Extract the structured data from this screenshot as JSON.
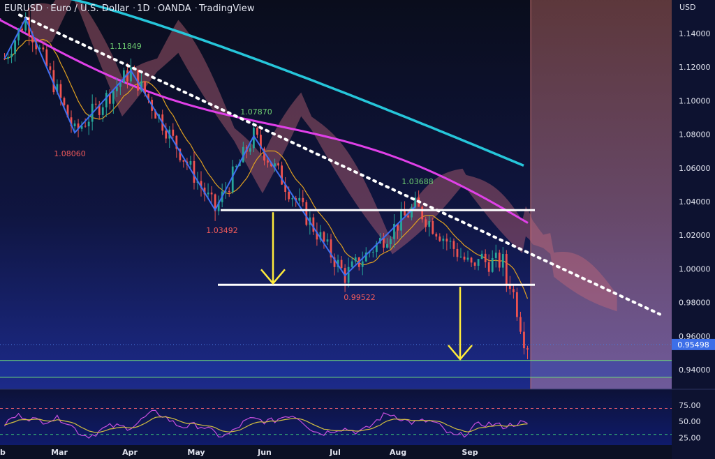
{
  "header": {
    "symbol": "EURUSD",
    "name": "Euro / U.S. Dollar",
    "interval": "1D",
    "broker": "OANDA",
    "platform": "TradingView",
    "separator": "·"
  },
  "chart_data": {
    "type": "candlestick",
    "currency_label": "USD",
    "last_price_label": "0.95498",
    "colors": {
      "background_top": "#0a0e1f",
      "background_bottom": "#1b2680",
      "up_candle": "#26a69a",
      "down_candle": "#ef5350",
      "trend_line": "#ffffff",
      "zigzag": "#3d6ef0",
      "ma_fast": "#e0a020",
      "ma_mid": "#e040e8",
      "ma_slow": "#26c6da",
      "cloud": "#c96a7a",
      "arrows": "#ffeb3b",
      "highlight_zone": "#c06a6a",
      "rsi_line": "#c84fe0",
      "rsi_signal": "#d4c040",
      "support_zone": "#6fe07a"
    },
    "y_axis": {
      "min": 0.93,
      "max": 1.16,
      "ticks": [
        "1.14000",
        "1.12000",
        "1.10000",
        "1.08000",
        "1.06000",
        "1.04000",
        "1.02000",
        "1.00000",
        "0.98000",
        "0.96000",
        "0.94000"
      ]
    },
    "x_axis": {
      "ticks": [
        "Feb",
        "Mar",
        "Apr",
        "May",
        "Jun",
        "Jul",
        "Aug",
        "Sep"
      ]
    },
    "pivot_labels": [
      {
        "label": "1.11849",
        "kind": "high"
      },
      {
        "label": "1.08060",
        "kind": "low"
      },
      {
        "label": "1.07870",
        "kind": "high"
      },
      {
        "label": "1.03492",
        "kind": "low"
      },
      {
        "label": "1.03688",
        "kind": "high"
      },
      {
        "label": "0.99522",
        "kind": "low"
      }
    ],
    "zigzag": [
      1.125,
      1.149,
      1.081,
      1.118,
      1.035,
      1.079,
      0.996,
      1.037
    ],
    "trend_line": {
      "start": 1.151,
      "end": 0.973
    },
    "horizontal_levels": [
      1.0349,
      0.9905
    ],
    "support_zone": [
      0.9455,
      0.9355
    ],
    "last_price": 0.95498,
    "rsi": {
      "levels": [
        70,
        30
      ],
      "ticks": [
        "75.00",
        "50.00",
        "25.00"
      ],
      "ylim": [
        20,
        78
      ]
    }
  }
}
